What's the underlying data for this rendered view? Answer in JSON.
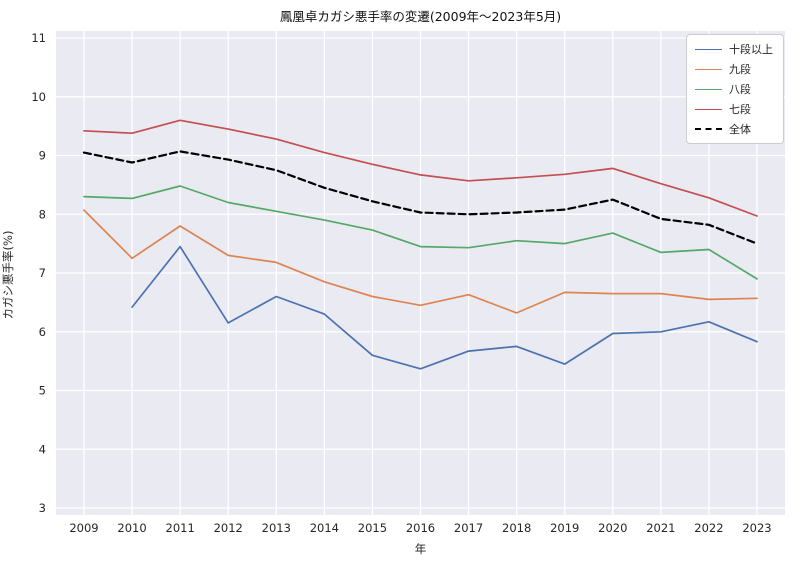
{
  "chart_data": {
    "type": "line",
    "title": "鳳凰卓カガシ悪手率の変遷(2009年〜2023年5月)",
    "xlabel": "年",
    "ylabel": "カガシ悪手率(%)",
    "x": [
      2009,
      2010,
      2011,
      2012,
      2013,
      2014,
      2015,
      2016,
      2017,
      2018,
      2019,
      2020,
      2021,
      2022,
      2023
    ],
    "ylim": [
      3,
      11
    ],
    "yticks": [
      3,
      4,
      5,
      6,
      7,
      8,
      9,
      10,
      11
    ],
    "grid": true,
    "legend_position": "upper right",
    "plot_background": "#eaeaf2",
    "grid_color": "#ffffff",
    "series": [
      {
        "name": "十段以上",
        "color": "#4c72b0",
        "dash": false,
        "values": [
          null,
          6.42,
          7.45,
          6.15,
          6.6,
          6.3,
          5.6,
          5.37,
          5.67,
          5.75,
          5.45,
          5.97,
          6.0,
          6.17,
          5.83
        ]
      },
      {
        "name": "九段",
        "color": "#dd8452",
        "dash": false,
        "values": [
          8.07,
          7.25,
          7.8,
          7.3,
          7.18,
          6.85,
          6.6,
          6.45,
          6.63,
          6.32,
          6.67,
          6.65,
          6.65,
          6.55,
          6.57
        ]
      },
      {
        "name": "八段",
        "color": "#55a868",
        "dash": false,
        "values": [
          8.3,
          8.27,
          8.48,
          8.2,
          8.05,
          7.9,
          7.73,
          7.45,
          7.43,
          7.55,
          7.5,
          7.68,
          7.35,
          7.4,
          6.9
        ]
      },
      {
        "name": "七段",
        "color": "#c44e52",
        "dash": false,
        "values": [
          9.42,
          9.38,
          9.6,
          9.45,
          9.28,
          9.05,
          8.85,
          8.67,
          8.57,
          8.62,
          8.68,
          8.78,
          8.52,
          8.28,
          7.97
        ]
      },
      {
        "name": "全体",
        "color": "#000000",
        "dash": true,
        "values": [
          9.05,
          8.88,
          9.07,
          8.93,
          8.75,
          8.45,
          8.22,
          8.03,
          8.0,
          8.03,
          8.08,
          8.25,
          7.92,
          7.82,
          7.5
        ]
      }
    ]
  }
}
